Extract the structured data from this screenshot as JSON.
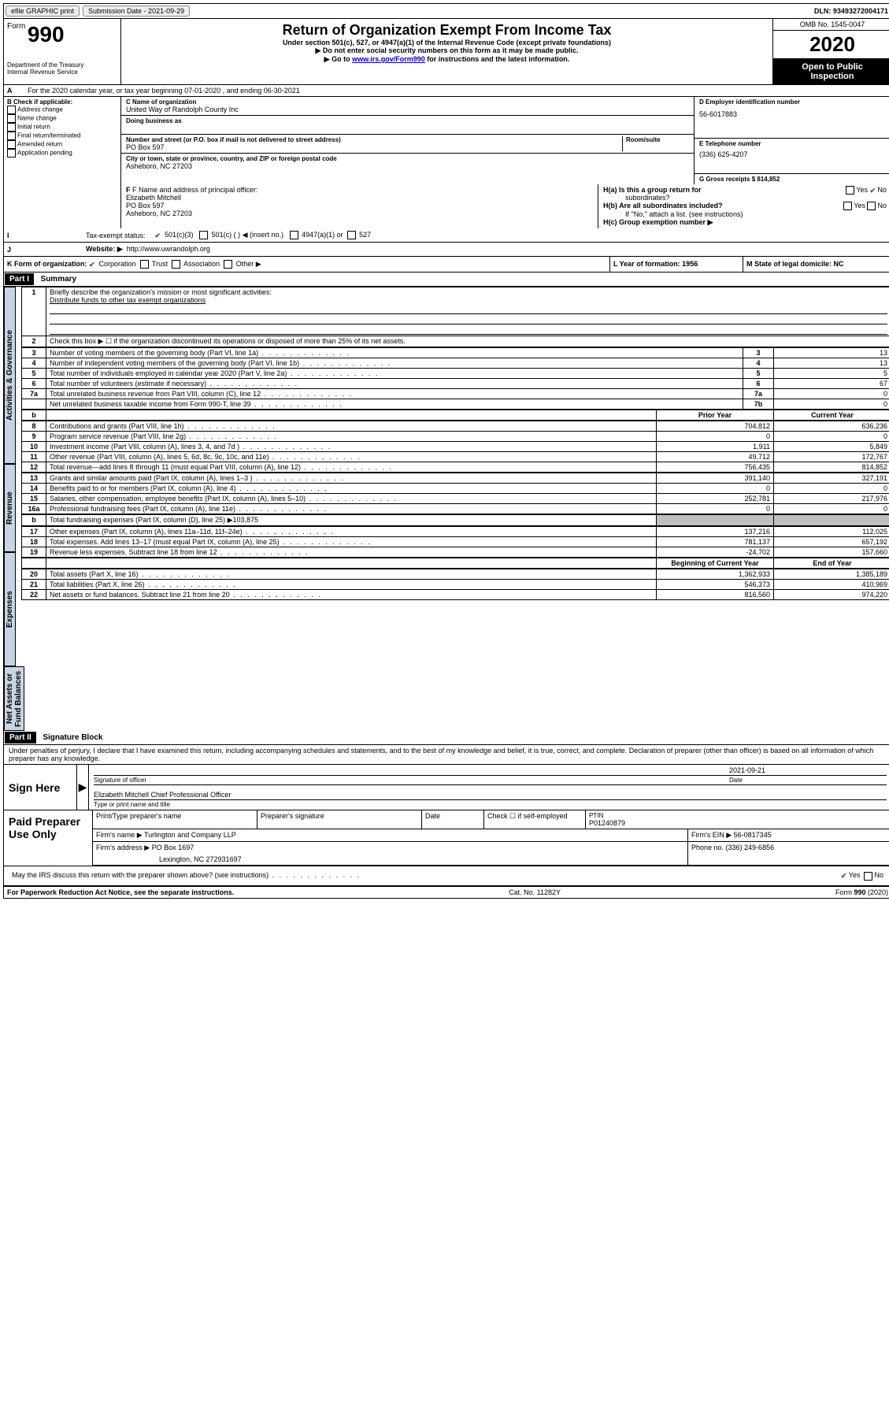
{
  "topbar": {
    "efile": "efile GRAPHIC print",
    "sub_label": "Submission Date - 2021-09-29",
    "dln_label": "DLN: 93493272004171"
  },
  "header": {
    "form_word": "Form",
    "form_no": "990",
    "dept1": "Department of the Treasury",
    "dept2": "Internal Revenue Service",
    "title": "Return of Organization Exempt From Income Tax",
    "sub1": "Under section 501(c), 527, or 4947(a)(1) of the Internal Revenue Code (except private foundations)",
    "sub2": "Do not enter social security numbers on this form as it may be made public.",
    "sub3_a": "Go to ",
    "sub3_link": "www.irs.gov/Form990",
    "sub3_b": " for instructions and the latest information.",
    "omb": "OMB No. 1545-0047",
    "year": "2020",
    "inspect1": "Open to Public",
    "inspect2": "Inspection"
  },
  "lineA": "For the 2020 calendar year, or tax year beginning 07-01-2020    , and ending 06-30-2021",
  "sectionB": {
    "hdr": "B Check if applicable:",
    "items": [
      "Address change",
      "Name change",
      "Initial return",
      "Final return/terminated",
      "Amended return",
      "Application pending"
    ]
  },
  "sectionC": {
    "name_lbl": "C Name of organization",
    "name": "United Way of Randolph County Inc",
    "dba_lbl": "Doing business as",
    "street_lbl": "Number and street (or P.O. box if mail is not delivered to street address)",
    "room_lbl": "Room/suite",
    "street": "PO Box 597",
    "city_lbl": "City or town, state or province, country, and ZIP or foreign postal code",
    "city": "Asheboro, NC  27203"
  },
  "sectionD": {
    "ein_lbl": "D Employer identification number",
    "ein": "56-6017883",
    "phone_lbl": "E Telephone number",
    "phone": "(336) 625-4207",
    "gross_lbl": "G Gross receipts $ 814,852"
  },
  "sectionF": {
    "lbl": "F Name and address of principal officer:",
    "name": "Elizabeth Mitchell",
    "line2": "PO Box 597",
    "line3": "Asheboro, NC  27203"
  },
  "sectionH": {
    "a1": "H(a)  Is this a group return for",
    "a2": "subordinates?",
    "b1": "H(b)  Are all subordinates included?",
    "b2": "If \"No,\" attach a list. (see instructions)",
    "c": "H(c)  Group exemption number ▶",
    "yes": "Yes",
    "no": "No"
  },
  "sectionI": {
    "lbl": "Tax-exempt status:",
    "o1": "501(c)(3)",
    "o2": "501(c) (  ) ◀ (insert no.)",
    "o3": "4947(a)(1) or",
    "o4": "527"
  },
  "sectionJ": {
    "lbl": "Website: ▶",
    "val": "http://www.uwrandolph.org"
  },
  "sectionK": {
    "lbl": "K Form of organization:",
    "o1": "Corporation",
    "o2": "Trust",
    "o3": "Association",
    "o4": "Other ▶"
  },
  "sectionL": {
    "lbl": "L Year of formation: 1956"
  },
  "sectionM": {
    "lbl": "M State of legal domicile: NC"
  },
  "part1": {
    "hdr": "Part I",
    "title": "Summary",
    "tab1": "Activities & Governance",
    "line1_lbl": "Briefly describe the organization's mission or most significant activities:",
    "line1_val": "Distribute funds to other tax exempt organizations",
    "line2": "Check this box ▶ ☐  if the organization discontinued its operations or disposed of more than 25% of its net assets.",
    "rows1": [
      {
        "n": "3",
        "d": "Number of voting members of the governing body (Part VI, line 1a)",
        "b": "3",
        "v": "13"
      },
      {
        "n": "4",
        "d": "Number of independent voting members of the governing body (Part VI, line 1b)",
        "b": "4",
        "v": "13"
      },
      {
        "n": "5",
        "d": "Total number of individuals employed in calendar year 2020 (Part V, line 2a)",
        "b": "5",
        "v": "5"
      },
      {
        "n": "6",
        "d": "Total number of volunteers (estimate if necessary)",
        "b": "6",
        "v": "67"
      },
      {
        "n": "7a",
        "d": "Total unrelated business revenue from Part VIII, column (C), line 12",
        "b": "7a",
        "v": "0"
      },
      {
        "n": "",
        "d": "Net unrelated business taxable income from Form 990-T, line 39",
        "b": "7b",
        "v": "0"
      }
    ],
    "tab2": "Revenue",
    "colhdr_prior": "Prior Year",
    "colhdr_curr": "Current Year",
    "rows2": [
      {
        "n": "8",
        "d": "Contributions and grants (Part VIII, line 1h)",
        "p": "704,812",
        "c": "636,236"
      },
      {
        "n": "9",
        "d": "Program service revenue (Part VIII, line 2g)",
        "p": "0",
        "c": "0"
      },
      {
        "n": "10",
        "d": "Investment income (Part VIII, column (A), lines 3, 4, and 7d )",
        "p": "1,911",
        "c": "5,849"
      },
      {
        "n": "11",
        "d": "Other revenue (Part VIII, column (A), lines 5, 6d, 8c, 9c, 10c, and 11e)",
        "p": "49,712",
        "c": "172,767"
      },
      {
        "n": "12",
        "d": "Total revenue—add lines 8 through 11 (must equal Part VIII, column (A), line 12)",
        "p": "756,435",
        "c": "814,852"
      }
    ],
    "tab3": "Expenses",
    "rows3": [
      {
        "n": "13",
        "d": "Grants and similar amounts paid (Part IX, column (A), lines 1–3 )",
        "p": "391,140",
        "c": "327,191"
      },
      {
        "n": "14",
        "d": "Benefits paid to or for members (Part IX, column (A), line 4)",
        "p": "0",
        "c": "0"
      },
      {
        "n": "15",
        "d": "Salaries, other compensation, employee benefits (Part IX, column (A), lines 5–10)",
        "p": "252,781",
        "c": "217,976"
      },
      {
        "n": "16a",
        "d": "Professional fundraising fees (Part IX, column (A), line 11e)",
        "p": "0",
        "c": "0"
      }
    ],
    "row16b": {
      "n": "b",
      "d": "Total fundraising expenses (Part IX, column (D), line 25) ▶103,875"
    },
    "rows3b": [
      {
        "n": "17",
        "d": "Other expenses (Part IX, column (A), lines 11a–11d, 11f–24e)",
        "p": "137,216",
        "c": "112,025"
      },
      {
        "n": "18",
        "d": "Total expenses. Add lines 13–17 (must equal Part IX, column (A), line 25)",
        "p": "781,137",
        "c": "657,192"
      },
      {
        "n": "19",
        "d": "Revenue less expenses. Subtract line 18 from line 12",
        "p": "-24,702",
        "c": "157,660"
      }
    ],
    "tab4": "Net Assets or Fund Balances",
    "colhdr_beg": "Beginning of Current Year",
    "colhdr_end": "End of Year",
    "rows4": [
      {
        "n": "20",
        "d": "Total assets (Part X, line 16)",
        "p": "1,362,933",
        "c": "1,385,189"
      },
      {
        "n": "21",
        "d": "Total liabilities (Part X, line 26)",
        "p": "546,373",
        "c": "410,969"
      },
      {
        "n": "22",
        "d": "Net assets or fund balances. Subtract line 21 from line 20",
        "p": "816,560",
        "c": "974,220"
      }
    ]
  },
  "part2": {
    "hdr": "Part II",
    "title": "Signature Block",
    "decl": "Under penalties of perjury, I declare that I have examined this return, including accompanying schedules and statements, and to the best of my knowledge and belief, it is true, correct, and complete. Declaration of preparer (other than officer) is based on all information of which preparer has any knowledge.",
    "sign_here": "Sign Here",
    "sig_officer": "Signature of officer",
    "date_lbl": "Date",
    "date_val": "2021-09-21",
    "officer": "Elizabeth Mitchell  Chief Professional Officer",
    "type_name": "Type or print name and title",
    "paid": "Paid Preparer Use Only",
    "p1": "Print/Type preparer's name",
    "p2": "Preparer's signature",
    "p3": "Date",
    "p4": "Check ☐ if self-employed",
    "ptin_lbl": "PTIN",
    "ptin": "P01240879",
    "firm_name_lbl": "Firm's name    ▶",
    "firm_name": "Turlington and Company LLP",
    "firm_ein_lbl": "Firm's EIN ▶",
    "firm_ein": "56-0817345",
    "firm_addr_lbl": "Firm's address ▶",
    "firm_addr": "PO Box 1697",
    "firm_addr2": "Lexington, NC  272931697",
    "phone_lbl": "Phone no. (336) 249-6856",
    "discuss": "May the IRS discuss this return with the preparer shown above? (see instructions)"
  },
  "footer": {
    "left": "For Paperwork Reduction Act Notice, see the separate instructions.",
    "mid": "Cat. No. 11282Y",
    "right": "Form 990 (2020)"
  }
}
